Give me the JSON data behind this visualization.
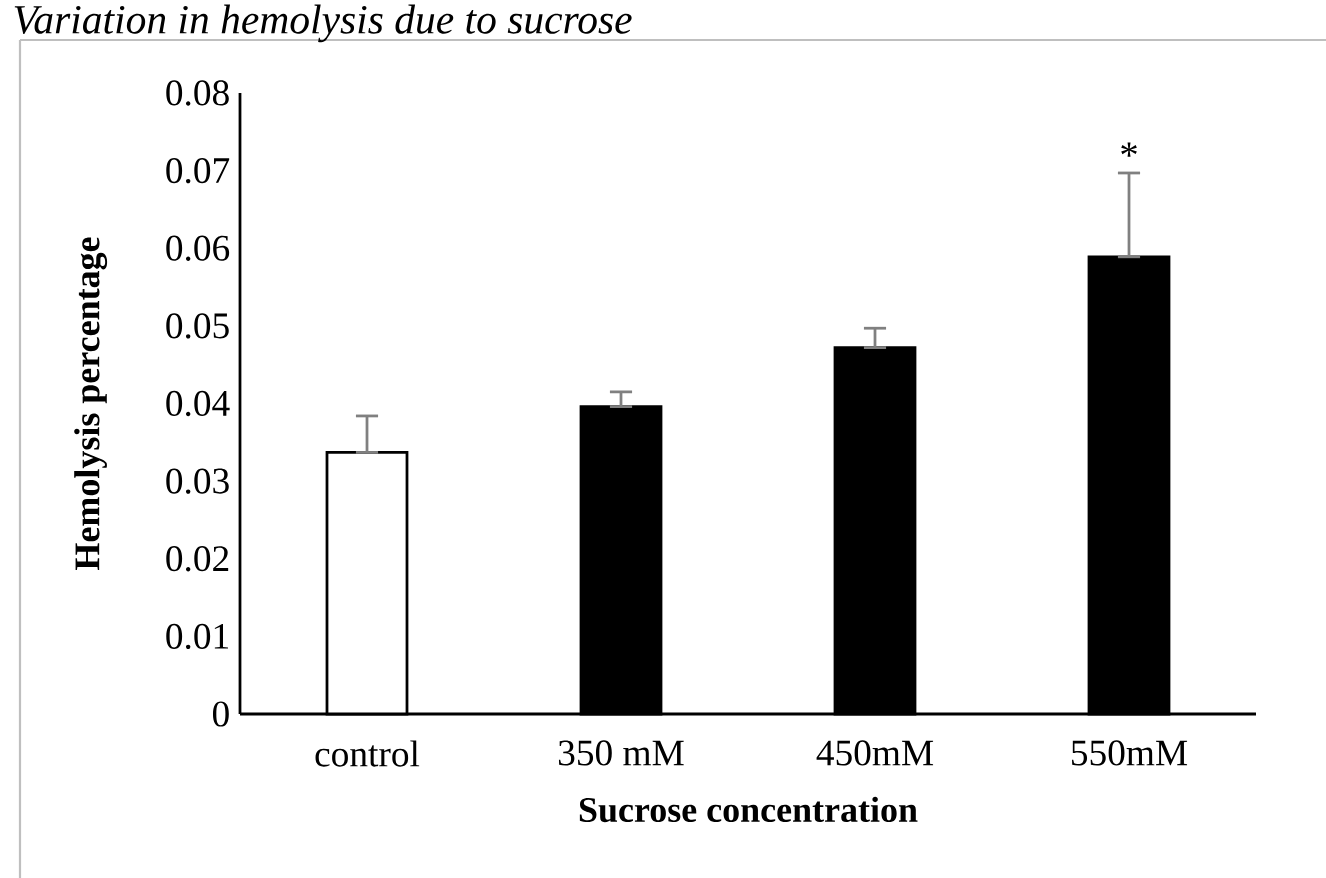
{
  "chart_data": {
    "type": "bar",
    "title": "Variation in hemolysis due to sucrose",
    "xlabel": "Sucrose concentration",
    "ylabel": "Hemolysis percentage",
    "categories": [
      "control",
      "350 mM",
      "450mM",
      "550mM"
    ],
    "values": [
      0.0337,
      0.0396,
      0.0472,
      0.0589
    ],
    "colors": [
      "#ffffff",
      "#000000",
      "#000000",
      "#000000"
    ],
    "errors": [
      [
        0.0337,
        0.0384
      ],
      [
        0.0396,
        0.0415
      ],
      [
        0.0472,
        0.0497
      ],
      [
        0.0589,
        0.0697
      ]
    ],
    "ylim": [
      0,
      0.08
    ],
    "yticks": [
      0,
      0.01,
      0.02,
      0.03,
      0.04,
      0.05,
      0.06,
      0.07,
      0.08
    ],
    "grid": false,
    "annotations": [
      "*"
    ]
  }
}
